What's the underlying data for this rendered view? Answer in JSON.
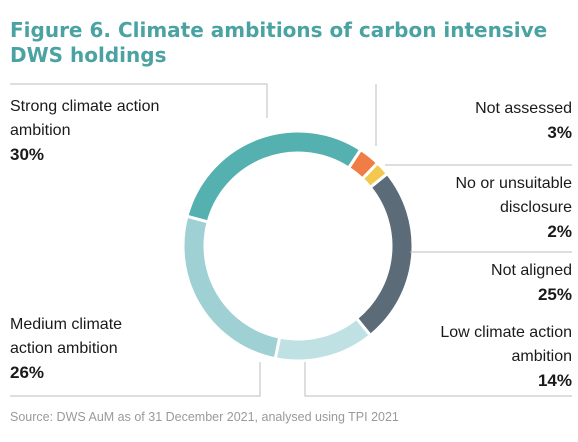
{
  "title": "Figure 6. Climate ambitions of carbon intensive DWS holdings",
  "source": "Source: DWS AuM as of 31 December 2021, analysed using TPI 2021",
  "chart_data": {
    "type": "pie",
    "title": "Figure 6. Climate ambitions of carbon intensive DWS holdings",
    "categories": [
      "Not assessed",
      "No or unsuitable disclosure",
      "Not aligned",
      "Low climate action ambition",
      "Medium climate action ambition",
      "Strong climate action ambition"
    ],
    "values": [
      3,
      2,
      25,
      14,
      26,
      30
    ],
    "labels": [
      "3%",
      "2%",
      "25%",
      "14%",
      "26%",
      "30%"
    ],
    "colors": [
      "#ef7d45",
      "#f2c94c",
      "#5b6b78",
      "#bfe1e4",
      "#9fd0d4",
      "#55b0b0"
    ],
    "unit": "%",
    "donut": true,
    "legend": "none"
  }
}
